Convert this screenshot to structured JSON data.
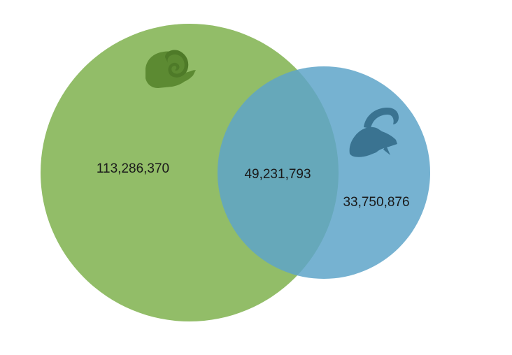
{
  "diagram": {
    "type": "venn",
    "sets": [
      {
        "id": "A",
        "icon": "ram-head-icon",
        "color": "#7fb24e"
      },
      {
        "id": "B",
        "icon": "ibex-head-icon",
        "color": "#5ea5c9"
      }
    ],
    "regions": {
      "only_a": "113,286,370",
      "overlap": "49,231,793",
      "only_b": "33,750,876"
    },
    "colors": {
      "set_a_fill": "#7fb24e",
      "set_b_fill": "#5ea5c9",
      "ram_icon": "#5c8a32",
      "ibex_icon": "#3a7391",
      "text": "#1a1a1a"
    }
  }
}
